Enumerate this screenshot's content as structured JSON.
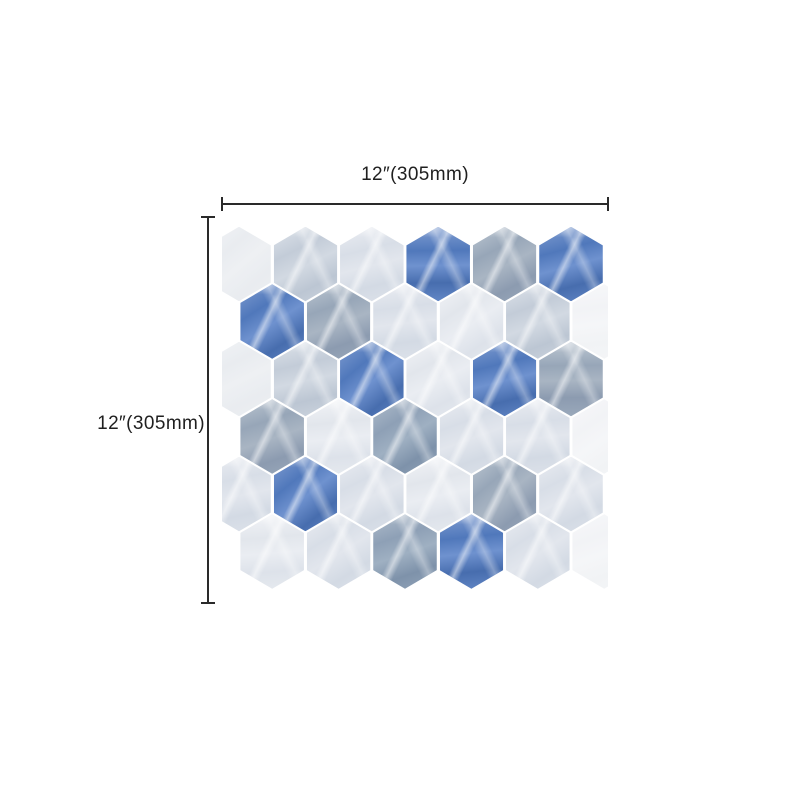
{
  "page": {
    "background": "#ffffff"
  },
  "diagram": {
    "type": "product-dimension-diagram",
    "subject": "blue and gray marble hexagon mosaic peel-and-stick tile sheet",
    "width_label": "12″(305mm)",
    "height_label": "12″(305mm)",
    "line_color": "#2a2a2a",
    "text_color": "#1f1f1f",
    "tile_sheet": {
      "grout_color": "#ffffff",
      "hex_columns": 6,
      "hex_rows": 6,
      "palette": {
        "blue": {
          "stops": [
            "#7796cd",
            "#5078bb",
            "#6f92cf",
            "#476dae",
            "#6287c6"
          ]
        },
        "gray": {
          "stops": [
            "#b6c1cd",
            "#97a6b8",
            "#a9b5c3",
            "#8c9bb0",
            "#9aa9bb"
          ]
        },
        "gray2": {
          "stops": [
            "#aab8c8",
            "#8ea0b6",
            "#9fb0c2",
            "#7e92aa",
            "#93a5ba"
          ]
        },
        "lightgray": {
          "stops": [
            "#d9dfe7",
            "#c3ccd8",
            "#d2d9e2",
            "#bcc6d3",
            "#ccd4de"
          ]
        },
        "light": {
          "stops": [
            "#e7eaf0",
            "#d8dee7",
            "#e2e6ed",
            "#d3dae4",
            "#dde2ea"
          ]
        },
        "lighter": {
          "stops": [
            "#eff1f5",
            "#e2e6ec",
            "#eaedf2",
            "#dde2ea",
            "#e6eaef"
          ]
        },
        "backing": {
          "stops": [
            "#f0f2f5",
            "#e9ecf0",
            "#eef0f3",
            "#e9ecf0",
            "#edeff2"
          ]
        },
        "backing_r": {
          "stops": [
            "#f6f7f9",
            "#f2f3f6",
            "#f5f6f8",
            "#f1f3f5",
            "#f4f5f7"
          ]
        }
      },
      "rows": [
        {
          "offset": 0,
          "cells": [
            "backing",
            "lightgray",
            "light",
            "blue",
            "gray",
            "blue"
          ]
        },
        {
          "offset": 1,
          "cells": [
            "blue",
            "gray",
            "light",
            "lighter",
            "lightgray",
            "backing_r"
          ]
        },
        {
          "offset": 0,
          "cells": [
            "backing",
            "lightgray",
            "blue",
            "lighter",
            "blue",
            "gray"
          ]
        },
        {
          "offset": 1,
          "cells": [
            "gray",
            "lighter",
            "gray2",
            "light",
            "light",
            "backing_r"
          ]
        },
        {
          "offset": 0,
          "cells": [
            "light",
            "blue",
            "light",
            "lighter",
            "gray",
            "light"
          ]
        },
        {
          "offset": 1,
          "cells": [
            "lighter",
            "light",
            "gray2",
            "blue",
            "light",
            "backing_r"
          ]
        }
      ]
    }
  }
}
